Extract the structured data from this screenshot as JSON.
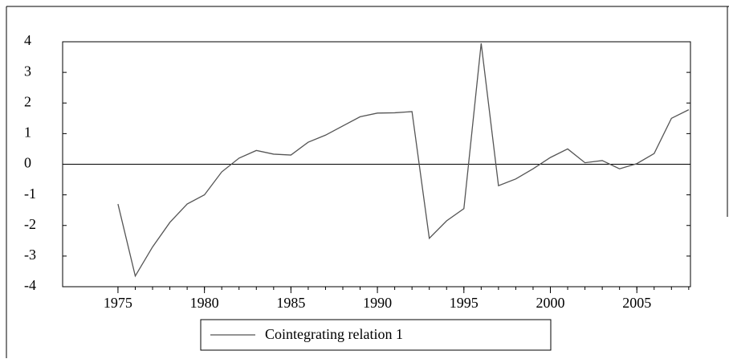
{
  "chart_data": {
    "type": "line",
    "x": [
      1975,
      1976,
      1977,
      1978,
      1979,
      1980,
      1981,
      1982,
      1983,
      1984,
      1985,
      1986,
      1987,
      1988,
      1989,
      1990,
      1991,
      1992,
      1993,
      1994,
      1995,
      1996,
      1997,
      1998,
      1999,
      2000,
      2001,
      2002,
      2003,
      2004,
      2005,
      2006,
      2007,
      2008
    ],
    "series": [
      {
        "name": "Cointegrating relation 1",
        "color": "#555555",
        "values": [
          -1.3,
          -3.65,
          -2.7,
          -1.9,
          -1.3,
          -1.0,
          -0.25,
          0.2,
          0.45,
          0.33,
          0.3,
          0.72,
          0.95,
          1.25,
          1.55,
          1.67,
          1.68,
          1.72,
          -2.42,
          -1.85,
          -1.45,
          3.95,
          -0.7,
          -0.48,
          -0.15,
          0.22,
          0.5,
          0.05,
          0.12,
          -0.15,
          0.02,
          0.35,
          1.5,
          1.78
        ]
      }
    ],
    "xlim": [
      1971.8,
      2008.1
    ],
    "xticks": [
      1975,
      1980,
      1985,
      1990,
      1995,
      2000,
      2005
    ],
    "ylim": [
      -4,
      4
    ],
    "yticks": [
      -4,
      -3,
      -2,
      -1,
      0,
      1,
      2,
      3,
      4
    ],
    "zero_line": true
  }
}
